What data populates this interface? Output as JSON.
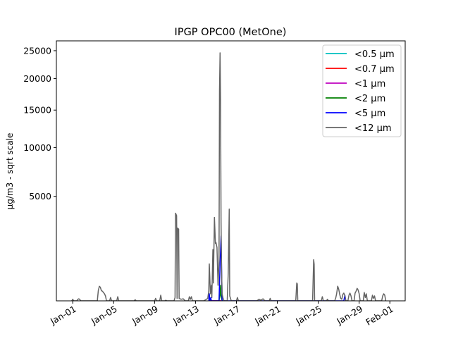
{
  "chart_data": {
    "type": "line",
    "title": "IPGP OPC00 (MetOne)",
    "xlabel": "",
    "ylabel": "µg/m3 - sqrt scale",
    "yscale": "sqrt",
    "ylim": [
      64,
      26900
    ],
    "xlim_days_from_jan01": [
      -1.6,
      32.5
    ],
    "yticks": [
      5000,
      10000,
      15000,
      20000,
      25000
    ],
    "xticks": [
      {
        "day": 0,
        "label": "Jan-01"
      },
      {
        "day": 4,
        "label": "Jan-05"
      },
      {
        "day": 8,
        "label": "Jan-09"
      },
      {
        "day": 12,
        "label": "Jan-13"
      },
      {
        "day": 16,
        "label": "Jan-17"
      },
      {
        "day": 20,
        "label": "Jan-21"
      },
      {
        "day": 24,
        "label": "Jan-25"
      },
      {
        "day": 28,
        "label": "Jan-29"
      },
      {
        "day": 31,
        "label": "Feb-01"
      }
    ],
    "legend_position": "top-right",
    "series": [
      {
        "name": "<0.5 µm",
        "color": "#00bfbf",
        "points": [
          [
            13.3,
            64
          ],
          [
            13.4,
            64
          ],
          [
            14.4,
            64
          ],
          [
            14.5,
            64
          ]
        ]
      },
      {
        "name": "<0.7 µm",
        "color": "#ff0000",
        "points": [
          [
            13.3,
            64
          ],
          [
            13.4,
            64
          ],
          [
            14.4,
            64
          ],
          [
            14.5,
            64
          ]
        ]
      },
      {
        "name": "<1 µm",
        "color": "#bf00bf",
        "points": [
          [
            13.3,
            64
          ],
          [
            13.4,
            64
          ],
          [
            14.4,
            64
          ],
          [
            14.5,
            70
          ]
        ]
      },
      {
        "name": "<2 µm",
        "color": "#008000",
        "points": [
          [
            14.3,
            64
          ],
          [
            14.4,
            140
          ],
          [
            14.45,
            300
          ],
          [
            14.5,
            120
          ],
          [
            14.6,
            64
          ]
        ]
      },
      {
        "name": "<5 µm",
        "color": "#0000ff",
        "points": [
          [
            13.3,
            64
          ],
          [
            13.35,
            150
          ],
          [
            13.4,
            64
          ],
          [
            13.5,
            100
          ],
          [
            13.55,
            64
          ],
          [
            14.3,
            64
          ],
          [
            14.4,
            900
          ],
          [
            14.5,
            2200
          ],
          [
            14.6,
            64
          ],
          [
            26.5,
            64
          ],
          [
            26.6,
            130
          ],
          [
            26.7,
            64
          ]
        ]
      },
      {
        "name": "<12 µm",
        "color": "#646464",
        "points": [
          [
            -0.1,
            64
          ],
          [
            0,
            80
          ],
          [
            0.1,
            64
          ],
          [
            0.4,
            64
          ],
          [
            0.5,
            80
          ],
          [
            0.6,
            85
          ],
          [
            0.7,
            75
          ],
          [
            0.8,
            64
          ],
          [
            2.4,
            64
          ],
          [
            2.5,
            200
          ],
          [
            2.6,
            280
          ],
          [
            2.7,
            260
          ],
          [
            2.8,
            200
          ],
          [
            2.9,
            190
          ],
          [
            3.0,
            170
          ],
          [
            3.1,
            150
          ],
          [
            3.2,
            120
          ],
          [
            3.3,
            64
          ],
          [
            3.6,
            64
          ],
          [
            3.7,
            100
          ],
          [
            3.8,
            64
          ],
          [
            4.3,
            64
          ],
          [
            4.4,
            110
          ],
          [
            4.5,
            64
          ],
          [
            6.0,
            64
          ],
          [
            6.1,
            75
          ],
          [
            6.2,
            64
          ],
          [
            8.0,
            64
          ],
          [
            8.1,
            90
          ],
          [
            8.2,
            64
          ],
          [
            8.5,
            64
          ],
          [
            8.6,
            130
          ],
          [
            8.7,
            64
          ],
          [
            9.0,
            64
          ],
          [
            9.1,
            70
          ],
          [
            9.2,
            64
          ],
          [
            9.9,
            64
          ],
          [
            10.0,
            100
          ],
          [
            10.05,
            3670
          ],
          [
            10.15,
            3500
          ],
          [
            10.2,
            90
          ],
          [
            10.25,
            2670
          ],
          [
            10.35,
            2600
          ],
          [
            10.4,
            90
          ],
          [
            10.6,
            80
          ],
          [
            10.8,
            85
          ],
          [
            11.0,
            64
          ],
          [
            11.3,
            64
          ],
          [
            11.4,
            110
          ],
          [
            11.5,
            80
          ],
          [
            11.6,
            110
          ],
          [
            11.7,
            64
          ],
          [
            12.8,
            64
          ],
          [
            13.0,
            75
          ],
          [
            13.2,
            90
          ],
          [
            13.3,
            200
          ],
          [
            13.35,
            910
          ],
          [
            13.4,
            500
          ],
          [
            13.45,
            150
          ],
          [
            13.55,
            300
          ],
          [
            13.6,
            100
          ],
          [
            13.7,
            1500
          ],
          [
            13.75,
            350
          ],
          [
            13.85,
            3370
          ],
          [
            13.95,
            1800
          ],
          [
            14.0,
            1850
          ],
          [
            14.1,
            1600
          ],
          [
            14.2,
            300
          ],
          [
            14.3,
            1000
          ],
          [
            14.35,
            18000
          ],
          [
            14.4,
            24600
          ],
          [
            14.45,
            16200
          ],
          [
            14.5,
            3000
          ],
          [
            14.55,
            700
          ],
          [
            14.6,
            150
          ],
          [
            14.7,
            90
          ],
          [
            14.8,
            64
          ],
          [
            15.1,
            64
          ],
          [
            15.2,
            600
          ],
          [
            15.3,
            3980
          ],
          [
            15.35,
            120
          ],
          [
            15.5,
            64
          ],
          [
            16.0,
            64
          ],
          [
            16.1,
            100
          ],
          [
            16.2,
            64
          ],
          [
            18.0,
            64
          ],
          [
            18.2,
            80
          ],
          [
            18.4,
            70
          ],
          [
            18.6,
            85
          ],
          [
            18.8,
            64
          ],
          [
            19.2,
            64
          ],
          [
            19.3,
            90
          ],
          [
            19.4,
            64
          ],
          [
            21.8,
            64
          ],
          [
            21.9,
            350
          ],
          [
            21.95,
            330
          ],
          [
            22.0,
            64
          ],
          [
            23.45,
            64
          ],
          [
            23.55,
            1070
          ],
          [
            23.6,
            900
          ],
          [
            23.65,
            64
          ],
          [
            24.3,
            64
          ],
          [
            24.4,
            110
          ],
          [
            24.5,
            64
          ],
          [
            24.8,
            64
          ],
          [
            24.9,
            80
          ],
          [
            25.0,
            64
          ],
          [
            25.6,
            64
          ],
          [
            25.7,
            90
          ],
          [
            25.8,
            150
          ],
          [
            25.9,
            280
          ],
          [
            26.0,
            230
          ],
          [
            26.1,
            140
          ],
          [
            26.2,
            90
          ],
          [
            26.3,
            80
          ],
          [
            26.4,
            140
          ],
          [
            26.5,
            160
          ],
          [
            26.6,
            120
          ],
          [
            26.7,
            64
          ],
          [
            26.9,
            64
          ],
          [
            27.0,
            130
          ],
          [
            27.1,
            160
          ],
          [
            27.2,
            120
          ],
          [
            27.3,
            64
          ],
          [
            27.5,
            64
          ],
          [
            27.6,
            160
          ],
          [
            27.7,
            190
          ],
          [
            27.8,
            240
          ],
          [
            27.9,
            210
          ],
          [
            28.0,
            150
          ],
          [
            28.1,
            64
          ],
          [
            28.4,
            64
          ],
          [
            28.5,
            170
          ],
          [
            28.6,
            100
          ],
          [
            28.7,
            150
          ],
          [
            28.8,
            64
          ],
          [
            29.2,
            64
          ],
          [
            29.3,
            130
          ],
          [
            29.4,
            90
          ],
          [
            29.5,
            120
          ],
          [
            29.6,
            64
          ],
          [
            30.2,
            64
          ],
          [
            30.3,
            120
          ],
          [
            30.4,
            150
          ],
          [
            30.5,
            130
          ],
          [
            30.6,
            64
          ]
        ]
      }
    ]
  }
}
